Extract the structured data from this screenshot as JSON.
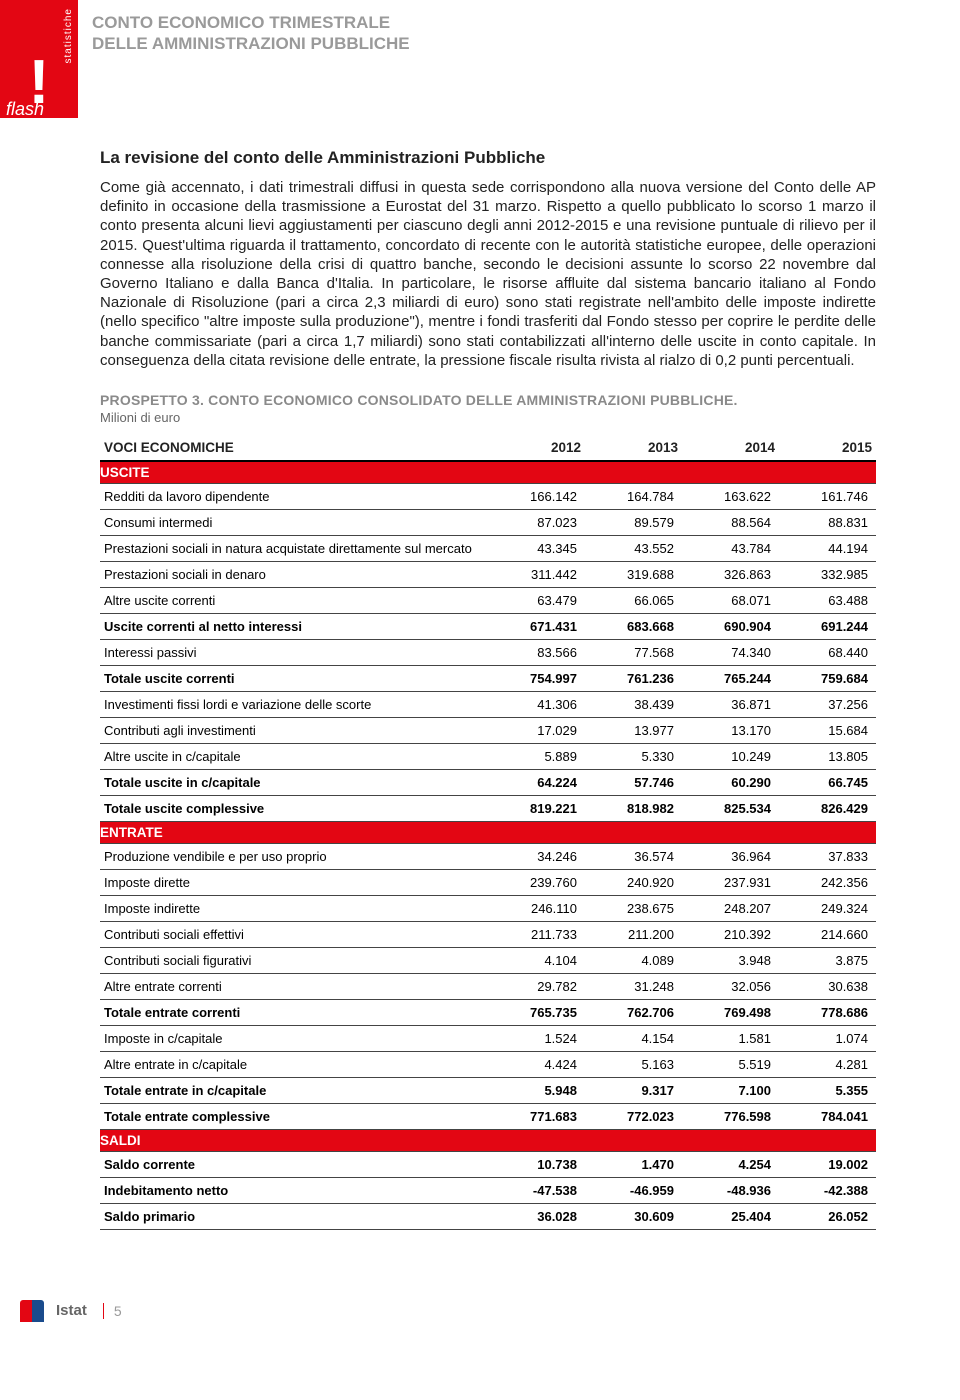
{
  "header": {
    "logo_side_text": "statistiche",
    "logo_word": "flash",
    "title_line1": "CONTO ECONOMICO TRIMESTRALE",
    "title_line2": "DELLE AMMINISTRAZIONI PUBBLICHE"
  },
  "section": {
    "title": "La revisione del conto delle Amministrazioni Pubbliche",
    "body": "Come già accennato, i dati trimestrali diffusi in questa sede corrispondono alla nuova versione del Conto delle AP definito in occasione della trasmissione a Eurostat del 31 marzo. Rispetto a quello pubblicato lo scorso 1 marzo il conto presenta alcuni lievi aggiustamenti per ciascuno degli anni 2012-2015 e una revisione puntuale di rilievo per il 2015. Quest'ultima riguarda il trattamento, concordato di recente con le autorità statistiche europee, delle operazioni connesse alla risoluzione della crisi di quattro banche, secondo le decisioni assunte lo scorso 22 novembre dal Governo Italiano e dalla Banca d'Italia. In particolare, le risorse affluite dal sistema bancario italiano al Fondo Nazionale di Risoluzione (pari a circa 2,3 miliardi di euro) sono stati registrate nell'ambito delle imposte indirette (nello specifico \"altre imposte sulla produzione\"), mentre i fondi trasferiti dal Fondo stesso per coprire le perdite delle banche commissariate (pari a circa 1,7 miliardi) sono stati contabilizzati all'interno delle uscite in conto capitale. In conseguenza della citata revisione delle entrate, la pressione fiscale risulta rivista al rialzo di 0,2 punti percentuali."
  },
  "table": {
    "title": "PROSPETTO 3. CONTO ECONOMICO CONSOLIDATO DELLE AMMINISTRAZIONI PUBBLICHE.",
    "subtitle": "Milioni di euro",
    "header_col": "VOCI ECONOMICHE",
    "years": [
      "2012",
      "2013",
      "2014",
      "2015"
    ],
    "sections": {
      "uscite": "USCITE",
      "entrate": "ENTRATE",
      "saldi": "SALDI"
    },
    "rows_uscite": [
      {
        "label": "Redditi da lavoro dipendente",
        "v": [
          "166.142",
          "164.784",
          "163.622",
          "161.746"
        ],
        "bold": false
      },
      {
        "label": "Consumi intermedi",
        "v": [
          "87.023",
          "89.579",
          "88.564",
          "88.831"
        ],
        "bold": false
      },
      {
        "label": "Prestazioni sociali in natura acquistate direttamente sul mercato",
        "v": [
          "43.345",
          "43.552",
          "43.784",
          "44.194"
        ],
        "bold": false
      },
      {
        "label": "Prestazioni sociali in denaro",
        "v": [
          "311.442",
          "319.688",
          "326.863",
          "332.985"
        ],
        "bold": false
      },
      {
        "label": "Altre uscite correnti",
        "v": [
          "63.479",
          "66.065",
          "68.071",
          "63.488"
        ],
        "bold": false
      },
      {
        "label": "Uscite correnti al netto interessi",
        "v": [
          "671.431",
          "683.668",
          "690.904",
          "691.244"
        ],
        "bold": true
      },
      {
        "label": "Interessi passivi",
        "v": [
          "83.566",
          "77.568",
          "74.340",
          "68.440"
        ],
        "bold": false
      },
      {
        "label": "Totale uscite correnti",
        "v": [
          "754.997",
          "761.236",
          "765.244",
          "759.684"
        ],
        "bold": true
      },
      {
        "label": "Investimenti fissi lordi e variazione delle scorte",
        "v": [
          "41.306",
          "38.439",
          "36.871",
          "37.256"
        ],
        "bold": false
      },
      {
        "label": "Contributi agli investimenti",
        "v": [
          "17.029",
          "13.977",
          "13.170",
          "15.684"
        ],
        "bold": false
      },
      {
        "label": "Altre uscite in c/capitale",
        "v": [
          "5.889",
          "5.330",
          "10.249",
          "13.805"
        ],
        "bold": false
      },
      {
        "label": "Totale uscite in c/capitale",
        "v": [
          "64.224",
          "57.746",
          "60.290",
          "66.745"
        ],
        "bold": true
      },
      {
        "label": "Totale uscite complessive",
        "v": [
          "819.221",
          "818.982",
          "825.534",
          "826.429"
        ],
        "bold": true
      }
    ],
    "rows_entrate": [
      {
        "label": "Produzione vendibile e per uso proprio",
        "v": [
          "34.246",
          "36.574",
          "36.964",
          "37.833"
        ],
        "bold": false
      },
      {
        "label": "Imposte dirette",
        "v": [
          "239.760",
          "240.920",
          "237.931",
          "242.356"
        ],
        "bold": false
      },
      {
        "label": "Imposte indirette",
        "v": [
          "246.110",
          "238.675",
          "248.207",
          "249.324"
        ],
        "bold": false
      },
      {
        "label": "Contributi sociali effettivi",
        "v": [
          "211.733",
          "211.200",
          "210.392",
          "214.660"
        ],
        "bold": false
      },
      {
        "label": "Contributi sociali figurativi",
        "v": [
          "4.104",
          "4.089",
          "3.948",
          "3.875"
        ],
        "bold": false
      },
      {
        "label": "Altre entrate correnti",
        "v": [
          "29.782",
          "31.248",
          "32.056",
          "30.638"
        ],
        "bold": false
      },
      {
        "label": "Totale entrate correnti",
        "v": [
          "765.735",
          "762.706",
          "769.498",
          "778.686"
        ],
        "bold": true
      },
      {
        "label": "Imposte in c/capitale",
        "v": [
          "1.524",
          "4.154",
          "1.581",
          "1.074"
        ],
        "bold": false
      },
      {
        "label": "Altre entrate in c/capitale",
        "v": [
          "4.424",
          "5.163",
          "5.519",
          "4.281"
        ],
        "bold": false
      },
      {
        "label": "Totale entrate in c/capitale",
        "v": [
          "5.948",
          "9.317",
          "7.100",
          "5.355"
        ],
        "bold": true
      },
      {
        "label": "Totale entrate complessive",
        "v": [
          "771.683",
          "772.023",
          "776.598",
          "784.041"
        ],
        "bold": true
      }
    ],
    "rows_saldi": [
      {
        "label": "Saldo corrente",
        "v": [
          "10.738",
          "1.470",
          "4.254",
          "19.002"
        ],
        "bold": true
      },
      {
        "label": "Indebitamento netto",
        "v": [
          "-47.538",
          "-46.959",
          "-48.936",
          "-42.388"
        ],
        "bold": true
      },
      {
        "label": "Saldo primario",
        "v": [
          "36.028",
          "30.609",
          "25.404",
          "26.052"
        ],
        "bold": true
      }
    ]
  },
  "footer": {
    "brand": "Istat",
    "page": "5"
  }
}
